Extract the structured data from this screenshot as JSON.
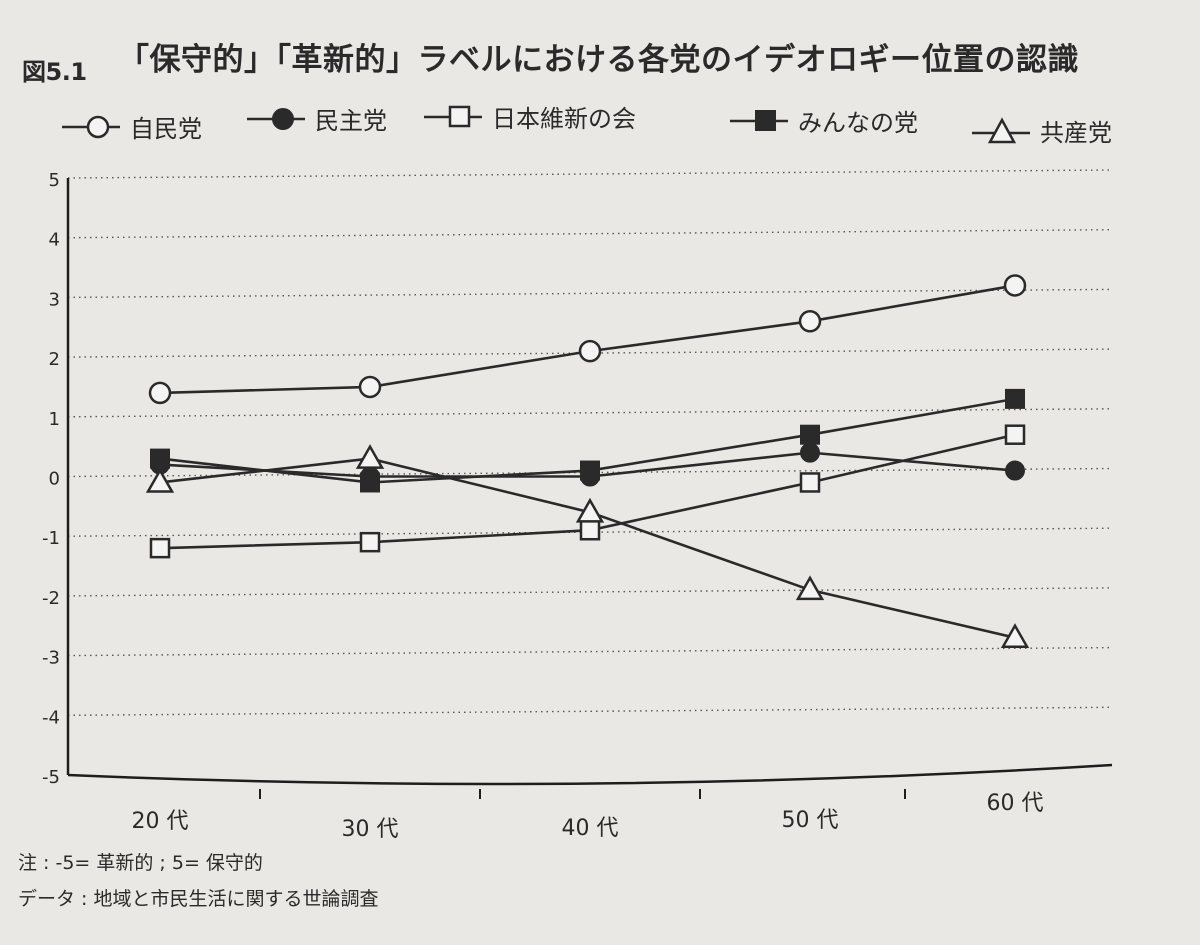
{
  "figure_label": "図5.1",
  "figure_title": "「保守的」「革新的」ラベルにおける各党のイデオロギー位置の認識",
  "notes": {
    "scale": "注 : -5= 革新的 ; 5= 保守的",
    "source": "データ : 地域と市民生活に関する世論調査"
  },
  "chart_data": {
    "type": "line",
    "title": "「保守的」「革新的」ラベルにおける各党のイデオロギー位置の認識",
    "categories": [
      "20 代",
      "30 代",
      "40 代",
      "50 代",
      "60 代"
    ],
    "y_ticks": [
      "5",
      "4",
      "3",
      "2",
      "1",
      "0",
      "-1",
      "-2",
      "-3",
      "-4",
      "-5"
    ],
    "ylim": [
      -5,
      5
    ],
    "grid": "dotted horizontal",
    "legend_position": "top",
    "series": [
      {
        "name": "自民党",
        "marker": "open-circle",
        "values": [
          1.4,
          1.5,
          2.1,
          2.6,
          3.2
        ]
      },
      {
        "name": "民主党",
        "marker": "filled-circle",
        "values": [
          0.2,
          0.0,
          0.0,
          0.4,
          0.1
        ]
      },
      {
        "name": "日本維新の会",
        "marker": "open-square",
        "values": [
          -1.2,
          -1.1,
          -0.9,
          -0.1,
          0.7
        ]
      },
      {
        "name": "みんなの党",
        "marker": "filled-square",
        "values": [
          0.3,
          -0.1,
          0.1,
          0.7,
          1.3
        ]
      },
      {
        "name": "共産党",
        "marker": "open-triangle",
        "values": [
          -0.1,
          0.3,
          -0.6,
          -1.9,
          -2.7
        ]
      }
    ]
  }
}
